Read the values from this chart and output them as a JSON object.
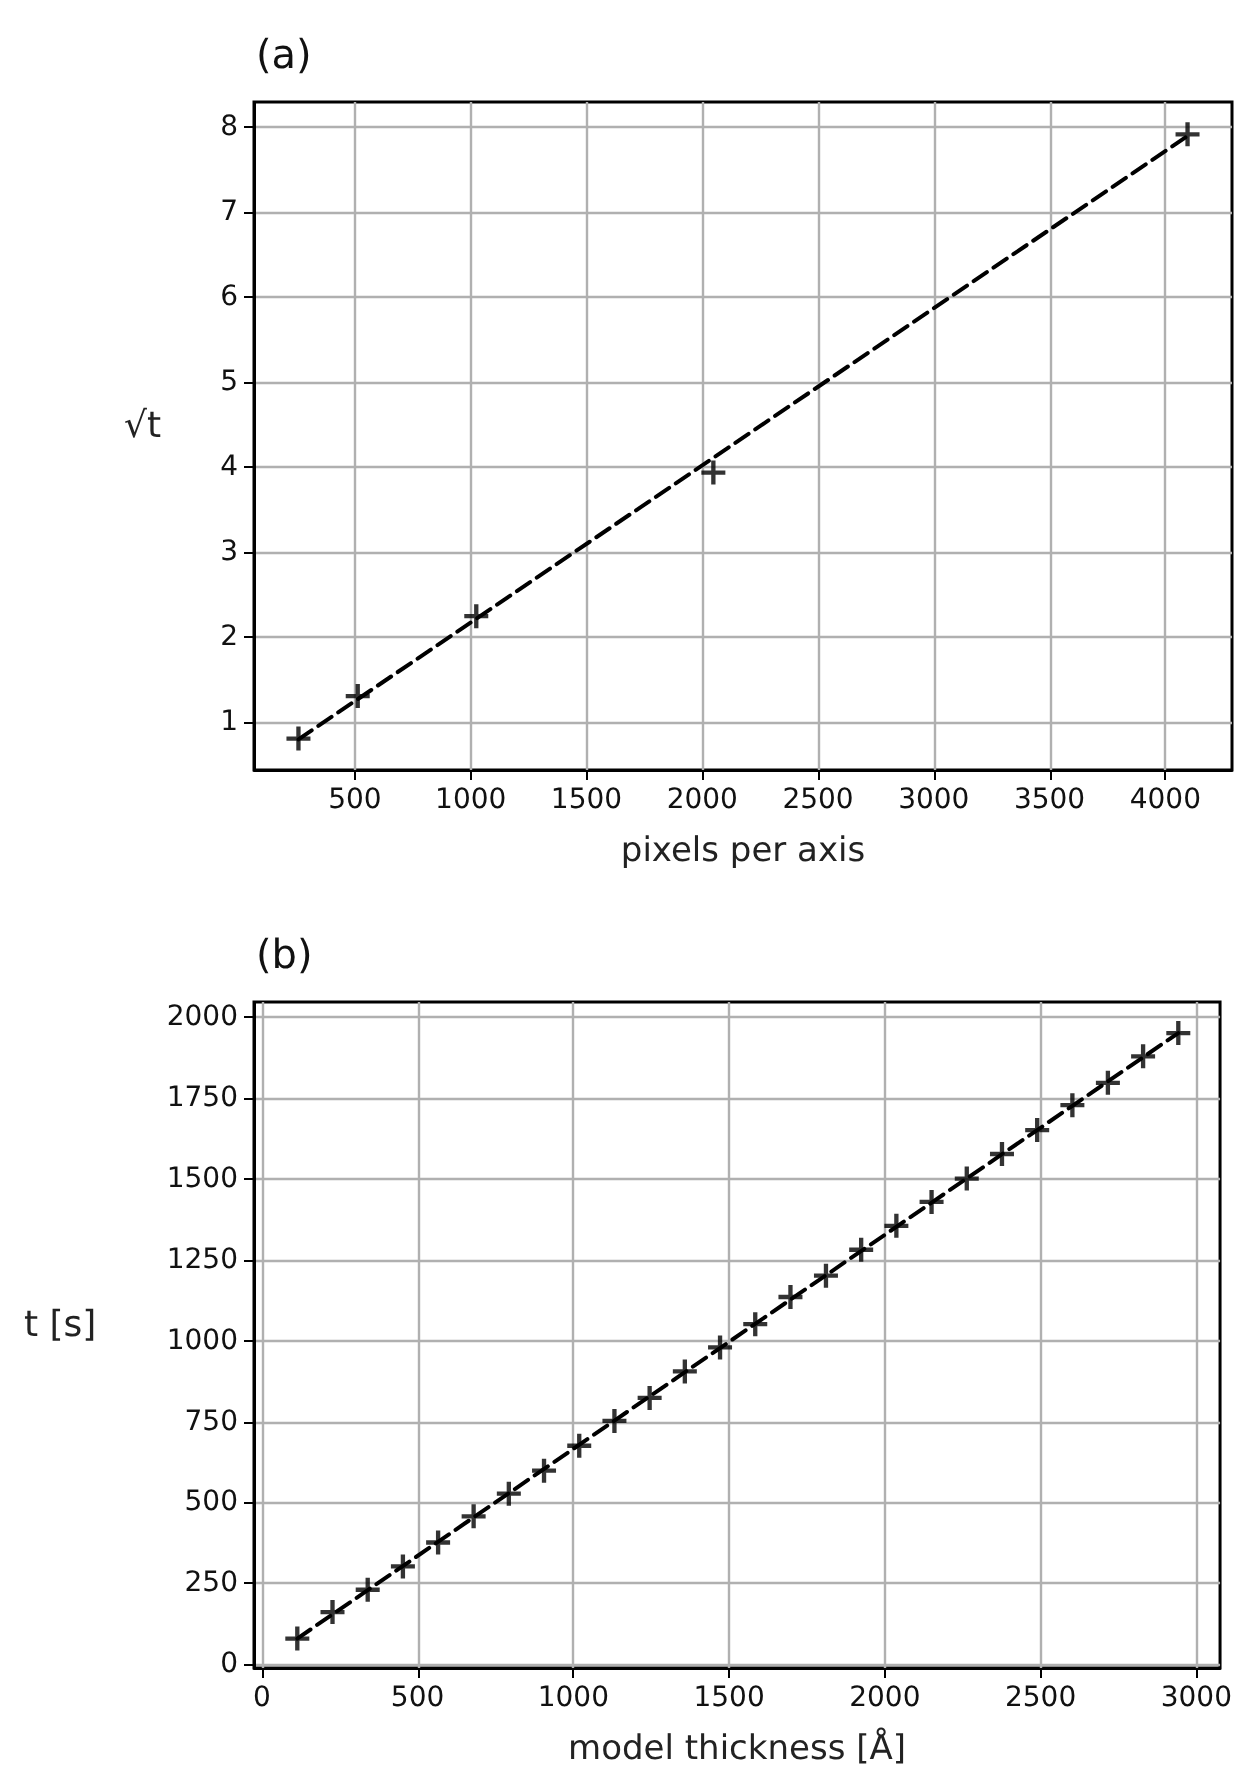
{
  "chart_data": [
    {
      "type": "scatter",
      "title": "(a)",
      "xlabel": "pixels per axis",
      "ylabel": "√t",
      "xlim": [
        64,
        4288
      ],
      "ylim": [
        0.44,
        8.3
      ],
      "xticks": [
        500,
        1000,
        1500,
        2000,
        2500,
        3000,
        3500,
        4000
      ],
      "yticks": [
        1,
        2,
        3,
        4,
        5,
        6,
        7,
        8
      ],
      "grid": true,
      "series": [
        {
          "type": "line",
          "color": "#000000",
          "line_style": "dashed",
          "marker": "none",
          "x": [
            256,
            4096
          ],
          "values": [
            0.8,
            7.9
          ]
        },
        {
          "color": "#000000",
          "marker": "cross",
          "x": [
            256,
            512,
            1024,
            2048,
            4096
          ],
          "values": [
            0.81,
            1.31,
            2.25,
            3.94,
            7.92
          ]
        }
      ]
    },
    {
      "type": "scatter",
      "title": "(b)",
      "xlabel": "model thickness [Å]",
      "ylabel": "t [s]",
      "xlim": [
        -25,
        3076
      ],
      "ylim": [
        -12,
        2047
      ],
      "xticks": [
        0,
        500,
        1000,
        1500,
        2000,
        2500,
        3000
      ],
      "yticks": [
        0,
        250,
        500,
        750,
        1000,
        1250,
        1500,
        1750,
        2000
      ],
      "grid": true,
      "series": [
        {
          "type": "line",
          "color": "#000000",
          "line_style": "dashed",
          "marker": "none",
          "x": [
            114,
            2942
          ],
          "values": [
            79,
            1951
          ]
        },
        {
          "color": "#000000",
          "marker": "cross",
          "x": [
            114,
            227,
            340,
            453,
            566,
            680,
            793,
            906,
            1019,
            1132,
            1245,
            1358,
            1471,
            1584,
            1697,
            1811,
            1924,
            2037,
            2150,
            2263,
            2376,
            2489,
            2602,
            2716,
            2829,
            2942
          ],
          "values": [
            79,
            161,
            230,
            302,
            376,
            457,
            527,
            598,
            675,
            752,
            823,
            905,
            979,
            1051,
            1135,
            1201,
            1281,
            1355,
            1429,
            1501,
            1577,
            1651,
            1728,
            1797,
            1879,
            1951
          ]
        }
      ]
    }
  ]
}
